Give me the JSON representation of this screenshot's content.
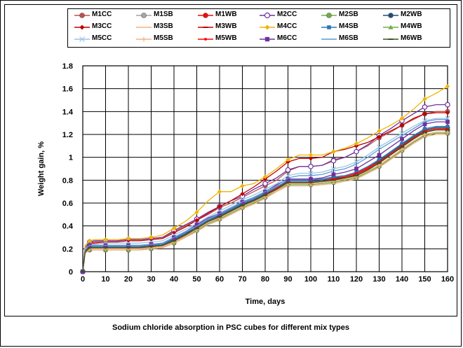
{
  "chart_data": {
    "type": "line",
    "title": "",
    "xlabel": "Time, days",
    "ylabel": "Weight gain, %",
    "xlim": [
      0,
      160
    ],
    "ylim": [
      0,
      1.8
    ],
    "xticks": [
      "0",
      "10",
      "20",
      "30",
      "40",
      "50",
      "60",
      "70",
      "80",
      "90",
      "100",
      "110",
      "120",
      "130",
      "140",
      "150",
      "160"
    ],
    "yticks": [
      "0",
      "0.2",
      "0.4",
      "0.6",
      "0.8",
      "1",
      "1.2",
      "1.4",
      "1.6",
      "1.8"
    ],
    "grid": true,
    "legend_position": "top",
    "x": [
      0,
      1,
      3,
      5,
      10,
      15,
      20,
      25,
      30,
      35,
      40,
      45,
      50,
      55,
      60,
      65,
      70,
      75,
      80,
      85,
      90,
      95,
      100,
      105,
      110,
      115,
      120,
      125,
      130,
      135,
      140,
      145,
      150,
      155,
      160
    ],
    "series": [
      {
        "name": "M1CC",
        "color": "#c0504d",
        "marker": "circle-filled",
        "values": [
          0,
          0.2,
          0.25,
          0.26,
          0.27,
          0.27,
          0.28,
          0.28,
          0.29,
          0.3,
          0.35,
          0.4,
          0.45,
          0.5,
          0.56,
          0.6,
          0.65,
          0.7,
          0.75,
          0.8,
          0.88,
          0.92,
          0.92,
          0.93,
          0.98,
          1.0,
          1.05,
          1.1,
          1.17,
          1.22,
          1.28,
          1.33,
          1.38,
          1.4,
          1.4
        ]
      },
      {
        "name": "M1SB",
        "color": "#a6a6a6",
        "marker": "circle-filled",
        "values": [
          0,
          0.17,
          0.2,
          0.2,
          0.2,
          0.2,
          0.2,
          0.2,
          0.21,
          0.22,
          0.26,
          0.31,
          0.37,
          0.43,
          0.47,
          0.52,
          0.57,
          0.61,
          0.66,
          0.72,
          0.77,
          0.77,
          0.77,
          0.78,
          0.8,
          0.81,
          0.83,
          0.88,
          0.93,
          1.0,
          1.07,
          1.14,
          1.2,
          1.22,
          1.22
        ]
      },
      {
        "name": "M1WB",
        "color": "#ff0000",
        "marker": "circle-filled",
        "values": [
          0,
          0.18,
          0.21,
          0.21,
          0.21,
          0.21,
          0.21,
          0.21,
          0.22,
          0.23,
          0.27,
          0.32,
          0.38,
          0.44,
          0.48,
          0.53,
          0.58,
          0.62,
          0.67,
          0.72,
          0.78,
          0.78,
          0.78,
          0.79,
          0.81,
          0.82,
          0.85,
          0.9,
          0.95,
          1.02,
          1.09,
          1.16,
          1.22,
          1.24,
          1.24
        ]
      },
      {
        "name": "M2CC",
        "color": "#7030a0",
        "marker": "circle-open",
        "values": [
          0,
          0.21,
          0.26,
          0.27,
          0.27,
          0.27,
          0.28,
          0.28,
          0.29,
          0.3,
          0.36,
          0.41,
          0.46,
          0.52,
          0.57,
          0.62,
          0.66,
          0.72,
          0.77,
          0.82,
          0.89,
          0.92,
          0.92,
          0.93,
          0.97,
          1.0,
          1.05,
          1.11,
          1.19,
          1.25,
          1.32,
          1.38,
          1.44,
          1.46,
          1.46
        ]
      },
      {
        "name": "M2SB",
        "color": "#70ad47",
        "marker": "circle-filled",
        "values": [
          0,
          0.16,
          0.19,
          0.19,
          0.19,
          0.19,
          0.19,
          0.19,
          0.2,
          0.21,
          0.25,
          0.3,
          0.36,
          0.42,
          0.46,
          0.51,
          0.56,
          0.6,
          0.65,
          0.71,
          0.76,
          0.76,
          0.76,
          0.77,
          0.78,
          0.8,
          0.82,
          0.87,
          0.92,
          0.99,
          1.06,
          1.13,
          1.19,
          1.21,
          1.21
        ]
      },
      {
        "name": "M2WB",
        "color": "#1f4e79",
        "marker": "circle-filled",
        "values": [
          0,
          0.18,
          0.22,
          0.22,
          0.22,
          0.22,
          0.22,
          0.22,
          0.23,
          0.24,
          0.28,
          0.33,
          0.39,
          0.45,
          0.49,
          0.54,
          0.59,
          0.63,
          0.68,
          0.73,
          0.79,
          0.79,
          0.79,
          0.8,
          0.82,
          0.83,
          0.86,
          0.91,
          0.97,
          1.04,
          1.11,
          1.18,
          1.24,
          1.26,
          1.26
        ]
      },
      {
        "name": "M3CC",
        "color": "#c00000",
        "marker": "diamond",
        "values": [
          0,
          0.2,
          0.25,
          0.25,
          0.26,
          0.26,
          0.27,
          0.27,
          0.28,
          0.29,
          0.34,
          0.39,
          0.45,
          0.51,
          0.57,
          0.62,
          0.68,
          0.74,
          0.81,
          0.88,
          0.96,
          0.99,
          0.99,
          1.0,
          1.05,
          1.07,
          1.1,
          1.13,
          1.18,
          1.23,
          1.28,
          1.34,
          1.38,
          1.39,
          1.39
        ]
      },
      {
        "name": "M3SB",
        "color": "#f4b183",
        "marker": "none",
        "values": [
          0,
          0.16,
          0.19,
          0.19,
          0.19,
          0.19,
          0.19,
          0.19,
          0.2,
          0.21,
          0.25,
          0.3,
          0.35,
          0.41,
          0.45,
          0.5,
          0.55,
          0.59,
          0.64,
          0.7,
          0.75,
          0.75,
          0.75,
          0.76,
          0.77,
          0.79,
          0.81,
          0.86,
          0.91,
          0.98,
          1.05,
          1.12,
          1.18,
          1.2,
          1.2
        ]
      },
      {
        "name": "M3WB",
        "color": "#c00000",
        "marker": "dash",
        "values": [
          0,
          0.17,
          0.21,
          0.21,
          0.21,
          0.21,
          0.21,
          0.21,
          0.22,
          0.23,
          0.27,
          0.32,
          0.38,
          0.44,
          0.48,
          0.53,
          0.58,
          0.62,
          0.67,
          0.72,
          0.78,
          0.78,
          0.78,
          0.79,
          0.81,
          0.82,
          0.84,
          0.89,
          0.95,
          1.02,
          1.09,
          1.16,
          1.22,
          1.24,
          1.24
        ]
      },
      {
        "name": "M4CC",
        "color": "#f0b400",
        "marker": "diamond",
        "values": [
          0,
          0.23,
          0.27,
          0.28,
          0.28,
          0.28,
          0.29,
          0.29,
          0.3,
          0.32,
          0.38,
          0.44,
          0.52,
          0.62,
          0.7,
          0.7,
          0.75,
          0.77,
          0.83,
          0.9,
          0.98,
          1.02,
          1.02,
          1.02,
          1.05,
          1.08,
          1.12,
          1.17,
          1.23,
          1.28,
          1.34,
          1.42,
          1.51,
          1.56,
          1.62
        ]
      },
      {
        "name": "M4SB",
        "color": "#2e75b6",
        "marker": "square",
        "values": [
          0,
          0.18,
          0.22,
          0.22,
          0.22,
          0.22,
          0.22,
          0.22,
          0.23,
          0.24,
          0.29,
          0.34,
          0.39,
          0.45,
          0.5,
          0.55,
          0.6,
          0.64,
          0.69,
          0.74,
          0.8,
          0.8,
          0.8,
          0.81,
          0.83,
          0.84,
          0.87,
          0.92,
          0.98,
          1.05,
          1.12,
          1.19,
          1.25,
          1.27,
          1.27
        ]
      },
      {
        "name": "M4WB",
        "color": "#70ad47",
        "marker": "triangle",
        "values": [
          0,
          0.17,
          0.2,
          0.2,
          0.2,
          0.2,
          0.2,
          0.2,
          0.21,
          0.22,
          0.26,
          0.31,
          0.37,
          0.43,
          0.47,
          0.52,
          0.57,
          0.61,
          0.66,
          0.72,
          0.77,
          0.77,
          0.77,
          0.78,
          0.79,
          0.81,
          0.83,
          0.88,
          0.93,
          1.0,
          1.07,
          1.14,
          1.2,
          1.22,
          1.22
        ]
      },
      {
        "name": "M5CC",
        "color": "#9dc3e6",
        "marker": "x",
        "values": [
          0,
          0.2,
          0.24,
          0.24,
          0.25,
          0.25,
          0.25,
          0.25,
          0.26,
          0.27,
          0.32,
          0.37,
          0.42,
          0.48,
          0.53,
          0.58,
          0.63,
          0.67,
          0.72,
          0.77,
          0.84,
          0.86,
          0.86,
          0.87,
          0.9,
          0.92,
          0.96,
          1.02,
          1.09,
          1.15,
          1.21,
          1.27,
          1.32,
          1.34,
          1.34
        ]
      },
      {
        "name": "M5SB",
        "color": "#f4b183",
        "marker": "plus",
        "values": [
          0,
          0.17,
          0.2,
          0.2,
          0.2,
          0.2,
          0.2,
          0.2,
          0.21,
          0.22,
          0.26,
          0.31,
          0.37,
          0.43,
          0.47,
          0.52,
          0.57,
          0.61,
          0.66,
          0.71,
          0.77,
          0.77,
          0.77,
          0.78,
          0.79,
          0.81,
          0.83,
          0.88,
          0.93,
          1.0,
          1.07,
          1.14,
          1.2,
          1.22,
          1.22
        ]
      },
      {
        "name": "M5WB",
        "color": "#ff0000",
        "marker": "dot",
        "values": [
          0,
          0.18,
          0.21,
          0.21,
          0.21,
          0.21,
          0.21,
          0.21,
          0.22,
          0.23,
          0.27,
          0.32,
          0.38,
          0.44,
          0.48,
          0.53,
          0.58,
          0.62,
          0.67,
          0.73,
          0.78,
          0.78,
          0.78,
          0.79,
          0.81,
          0.83,
          0.86,
          0.91,
          0.96,
          1.03,
          1.1,
          1.17,
          1.23,
          1.25,
          1.25
        ]
      },
      {
        "name": "M6CC",
        "color": "#7030a0",
        "marker": "square-filled",
        "values": [
          0,
          0.19,
          0.23,
          0.23,
          0.23,
          0.23,
          0.23,
          0.23,
          0.24,
          0.25,
          0.3,
          0.35,
          0.41,
          0.47,
          0.51,
          0.56,
          0.61,
          0.65,
          0.7,
          0.76,
          0.81,
          0.81,
          0.81,
          0.82,
          0.85,
          0.87,
          0.9,
          0.96,
          1.02,
          1.09,
          1.16,
          1.23,
          1.29,
          1.31,
          1.31
        ]
      },
      {
        "name": "M6SB",
        "color": "#5b9bd5",
        "marker": "none",
        "values": [
          0,
          0.19,
          0.23,
          0.23,
          0.23,
          0.23,
          0.23,
          0.23,
          0.24,
          0.25,
          0.3,
          0.35,
          0.4,
          0.46,
          0.51,
          0.56,
          0.61,
          0.65,
          0.7,
          0.75,
          0.82,
          0.84,
          0.84,
          0.85,
          0.88,
          0.9,
          0.94,
          1.0,
          1.07,
          1.13,
          1.19,
          1.25,
          1.31,
          1.33,
          1.33
        ]
      },
      {
        "name": "M6WB",
        "color": "#375623",
        "marker": "dash",
        "values": [
          0,
          0.17,
          0.21,
          0.21,
          0.21,
          0.21,
          0.21,
          0.21,
          0.22,
          0.23,
          0.27,
          0.32,
          0.38,
          0.44,
          0.48,
          0.53,
          0.58,
          0.62,
          0.67,
          0.72,
          0.78,
          0.78,
          0.78,
          0.79,
          0.8,
          0.82,
          0.84,
          0.89,
          0.95,
          1.02,
          1.09,
          1.16,
          1.22,
          1.24,
          1.24
        ]
      }
    ]
  },
  "caption": "Sodium chloride absorption in PSC cubes for different mix types"
}
